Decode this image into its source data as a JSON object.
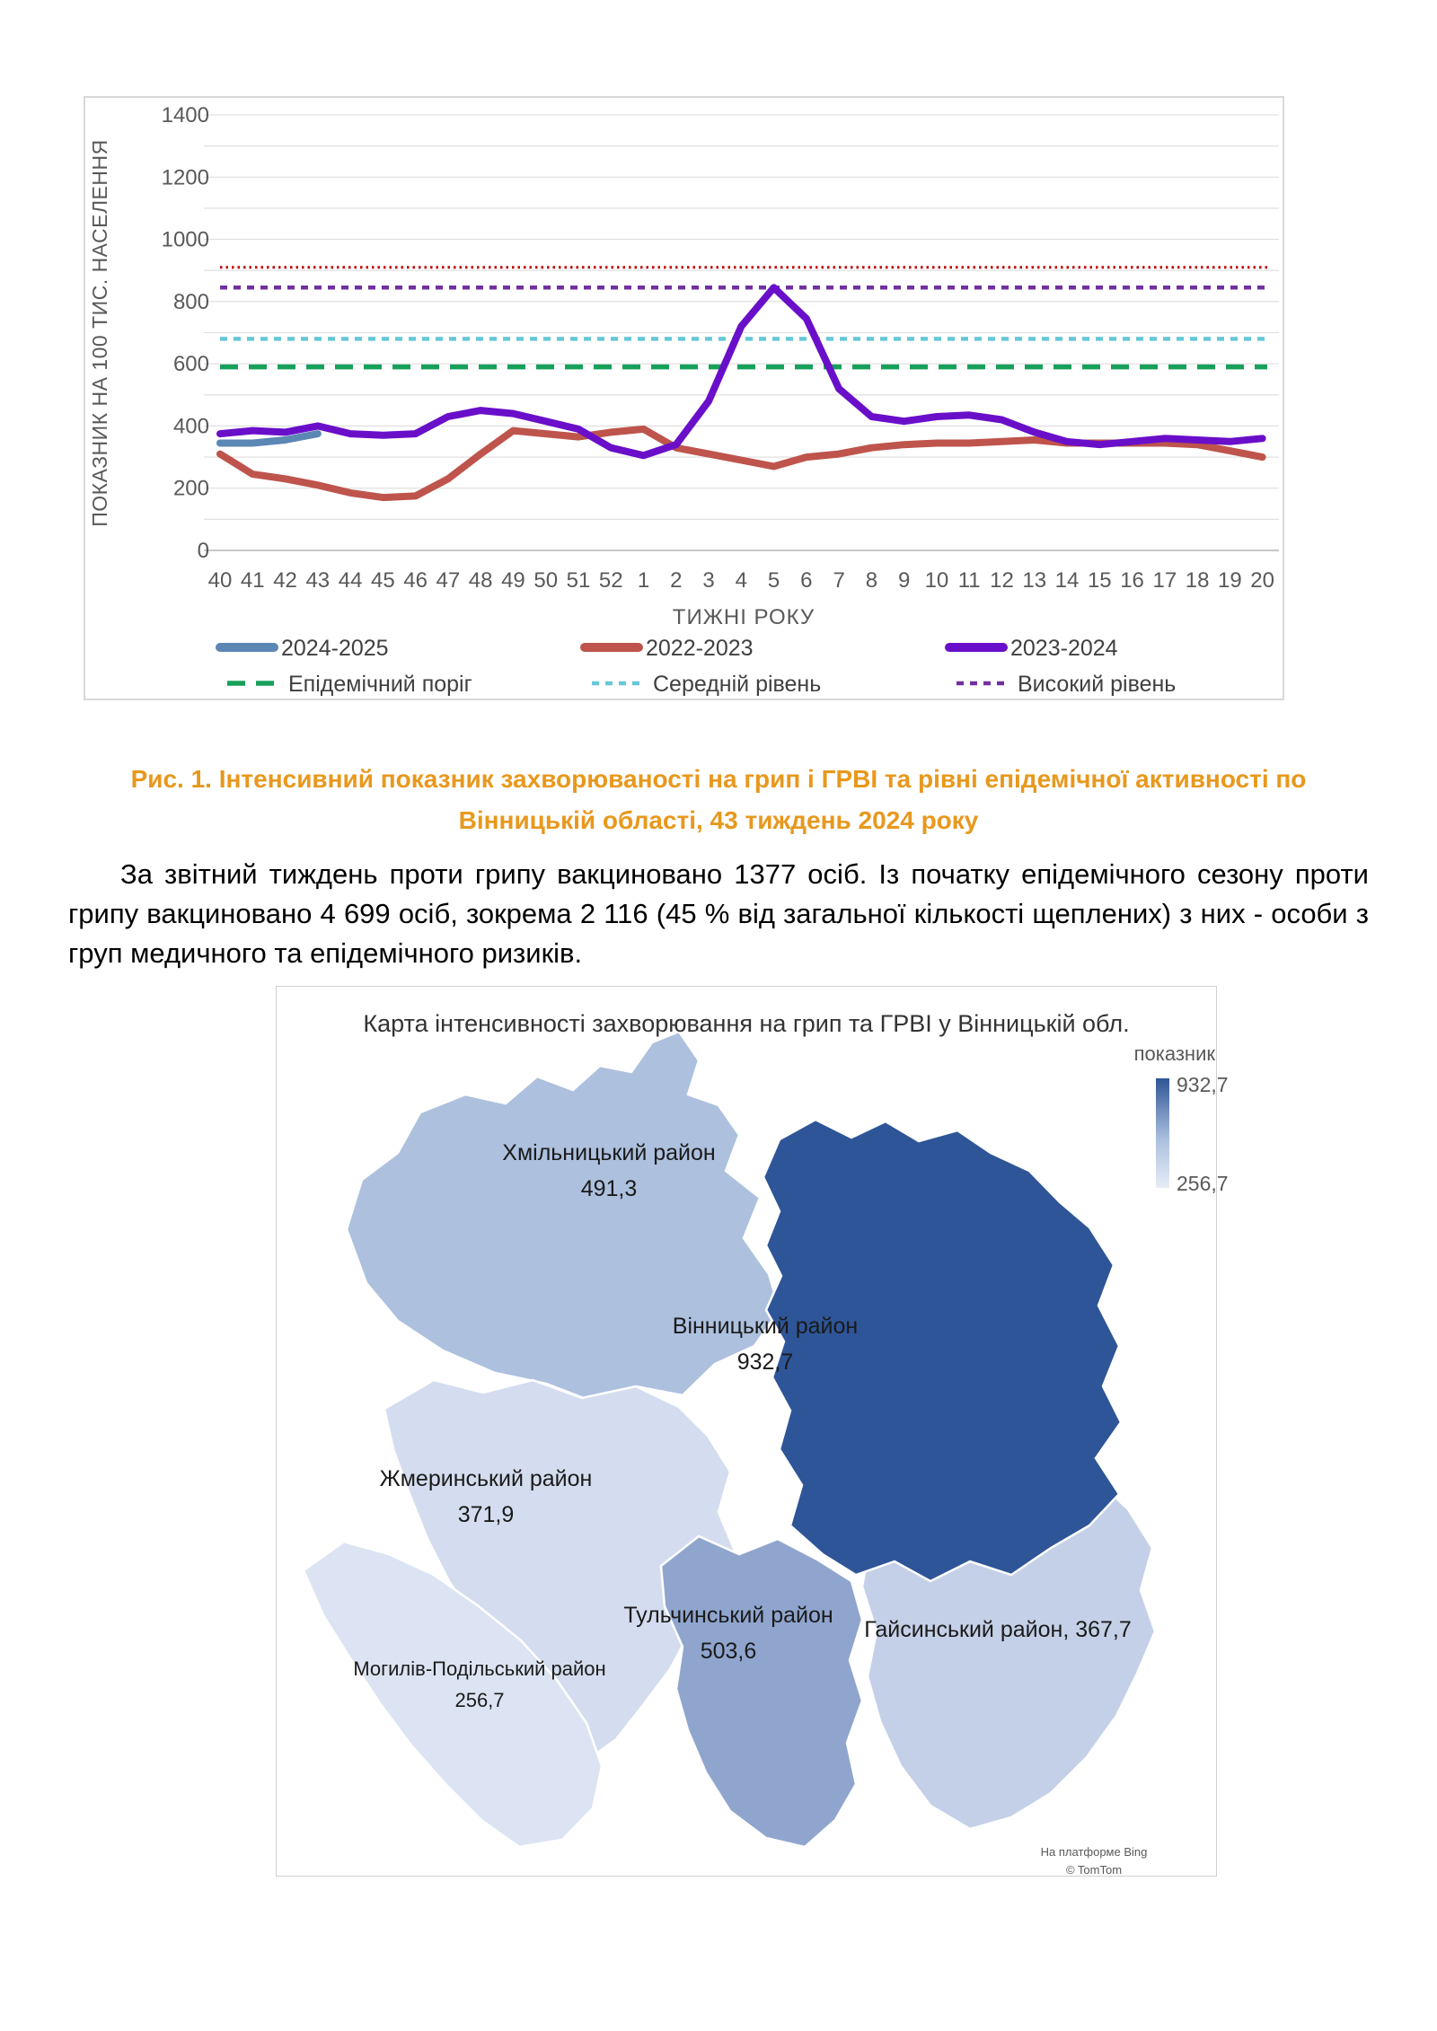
{
  "figure_caption": {
    "line1": "Рис. 1. Інтенсивний показник захворюваності на грип і ГРВІ та рівні епідемічної активності  по",
    "line2": "Вінницькій області, 43 тиждень 2024 року"
  },
  "paragraph": "За звітний тиждень проти грипу вакциновано 1377 осіб. Із початку епідемічного сезону проти грипу вакциновано 4 699 осіб, зокрема 2 116 (45 % від загальної кількості щеплених) з них - особи з груп медичного та епідемічного ризиків.",
  "chart_data": {
    "type": "line",
    "title": "",
    "xlabel": "ТИЖНІ РОКУ",
    "ylabel": "ПОКАЗНИК НА 100 ТИС. НАСЕЛЕННЯ",
    "ylim": [
      0,
      1400
    ],
    "yticks": [
      0,
      200,
      400,
      600,
      800,
      1000,
      1200,
      1400
    ],
    "gridline_step": 100,
    "grid": true,
    "legend_position": "bottom",
    "categories": [
      "40",
      "41",
      "42",
      "43",
      "44",
      "45",
      "46",
      "47",
      "48",
      "49",
      "50",
      "51",
      "52",
      "1",
      "2",
      "3",
      "4",
      "5",
      "6",
      "7",
      "8",
      "9",
      "10",
      "11",
      "12",
      "13",
      "14",
      "15",
      "16",
      "17",
      "18",
      "19",
      "20"
    ],
    "series": [
      {
        "name": "2024-2025",
        "color": "#5b87b5",
        "values": [
          345,
          345,
          355,
          375,
          null,
          null,
          null,
          null,
          null,
          null,
          null,
          null,
          null,
          null,
          null,
          null,
          null,
          null,
          null,
          null,
          null,
          null,
          null,
          null,
          null,
          null,
          null,
          null,
          null,
          null,
          null,
          null,
          null
        ]
      },
      {
        "name": "2022-2023",
        "color": "#be544c",
        "values": [
          310,
          245,
          230,
          210,
          185,
          170,
          175,
          230,
          310,
          385,
          375,
          365,
          380,
          390,
          330,
          310,
          290,
          270,
          300,
          310,
          330,
          340,
          345,
          345,
          350,
          355,
          345,
          345,
          345,
          345,
          340,
          320,
          300
        ]
      },
      {
        "name": "2023-2024",
        "color": "#6a0fc9",
        "values": [
          375,
          385,
          380,
          400,
          375,
          370,
          375,
          430,
          450,
          440,
          415,
          390,
          330,
          305,
          340,
          480,
          720,
          845,
          745,
          520,
          430,
          415,
          430,
          435,
          420,
          380,
          350,
          340,
          350,
          360,
          355,
          350,
          360
        ]
      }
    ],
    "thresholds": [
      {
        "name": "Епідемічний поріг",
        "value": 590,
        "color": "#16a05a",
        "dash": "long",
        "in_legend": true
      },
      {
        "name": "Середній рівень",
        "value": 680,
        "color": "#66c7d8",
        "dash": "short",
        "in_legend": true
      },
      {
        "name": "Високий рівень",
        "value": 845,
        "color": "#7030a0",
        "dash": "short",
        "in_legend": true
      },
      {
        "name": "",
        "value": 910,
        "color": "#c00000",
        "dash": "dot",
        "in_legend": false
      }
    ]
  },
  "map": {
    "title": "Карта інтенсивності захворювання на грип та ГРВІ у Вінницькій обл.",
    "legend": {
      "label": "показник",
      "max": "932,7",
      "min": "256,7",
      "max_color": "#2e5597",
      "min_color": "#e7ecf6"
    },
    "regions": [
      {
        "name": "Хмільницький район",
        "value": "491,3",
        "color": "#adc0de"
      },
      {
        "name": "Вінницький район",
        "value": "932,7",
        "color": "#2e5597"
      },
      {
        "name": "Жмеринський район",
        "value": "371,9",
        "color": "#d4ddef"
      },
      {
        "name": "Тульчинський район",
        "value": "503,6",
        "color": "#8fa5ce"
      },
      {
        "name": "Могилів-Подільський район",
        "value": "256,7",
        "color": "#dce4f3"
      },
      {
        "name": "Гайсинський район",
        "value": "367,7",
        "inline_label": "Гайсинський район, 367,7",
        "color": "#c4d0e8"
      }
    ],
    "attribution": {
      "line1": "На платформе Bing",
      "line2": "© TomTom"
    }
  }
}
